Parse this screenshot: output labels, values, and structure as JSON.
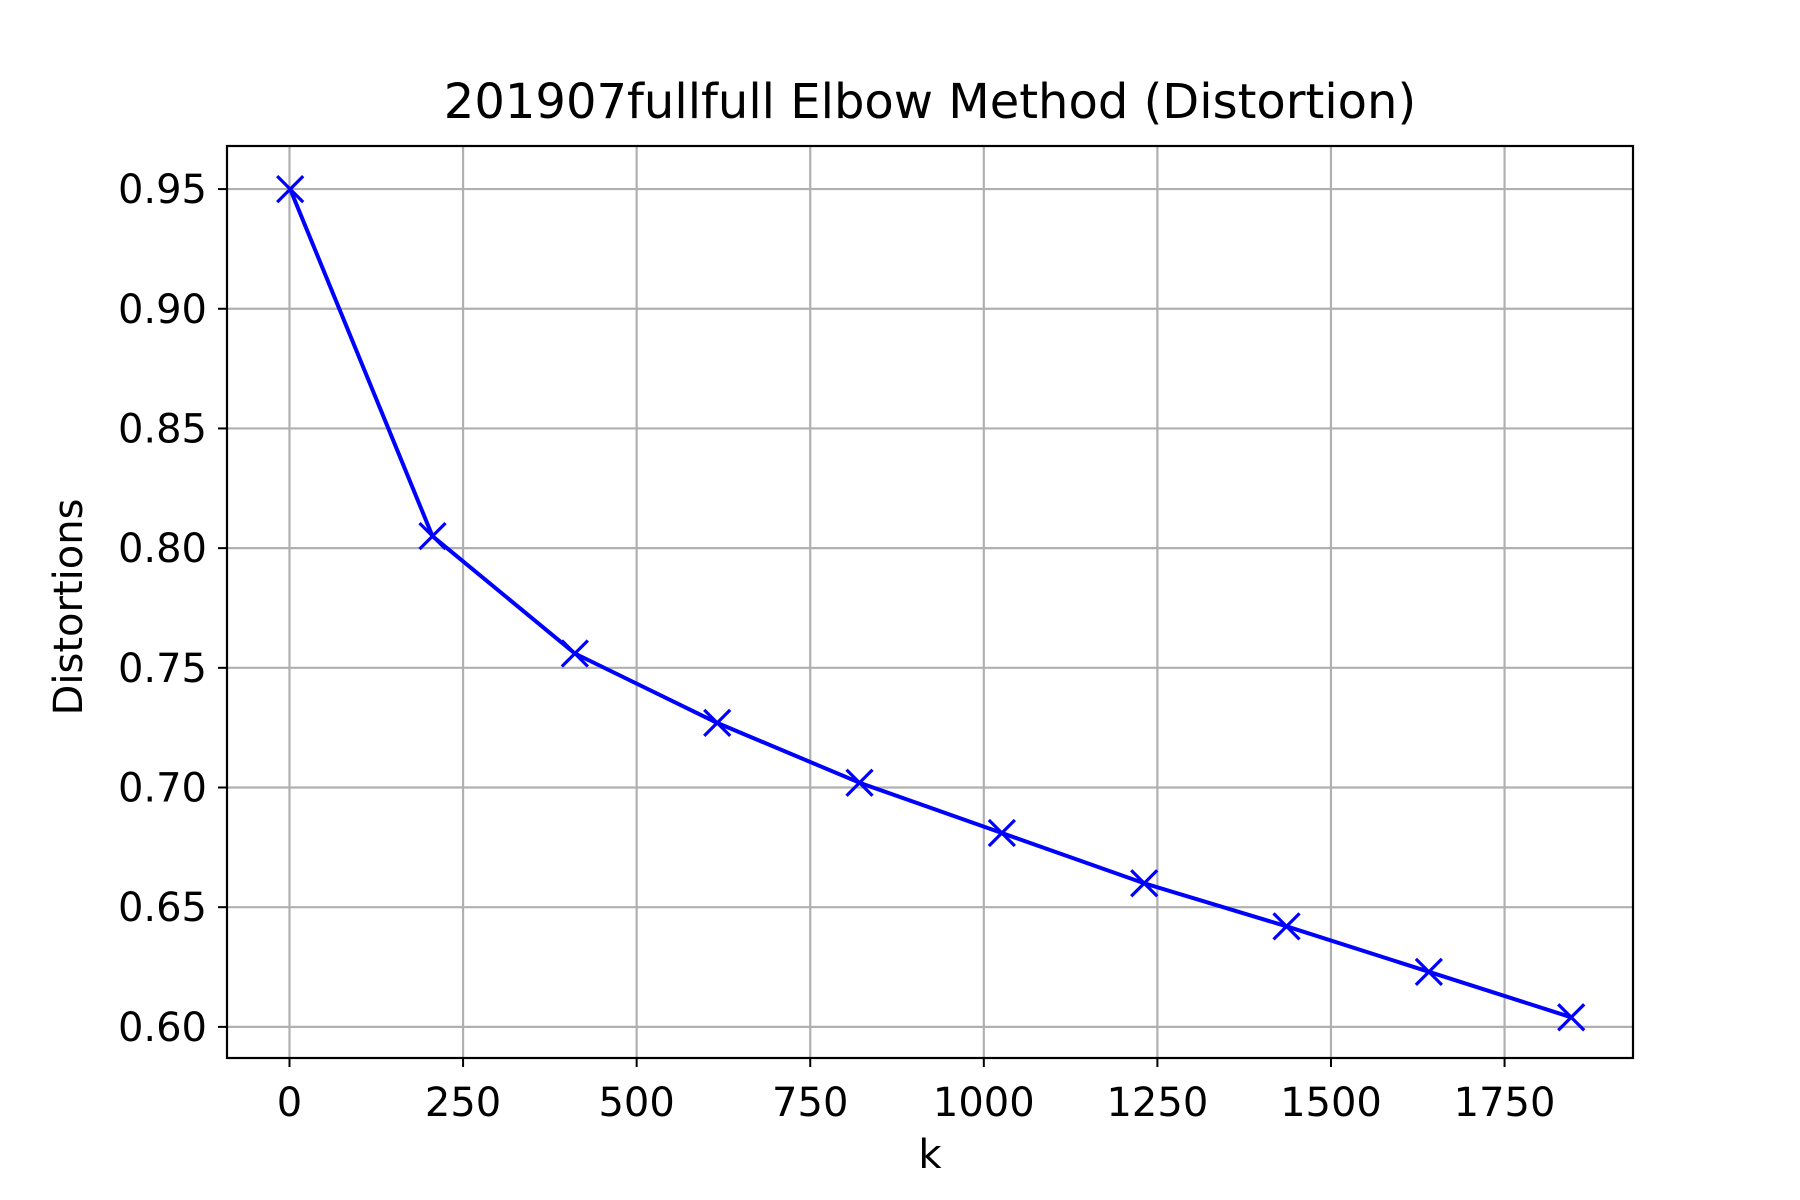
{
  "chart_data": {
    "type": "line",
    "title": "201907fullfull Elbow Method (Distortion)",
    "xlabel": "k",
    "ylabel": "Distortions",
    "xlim": [
      -90,
      1935
    ],
    "ylim": [
      0.587,
      0.968
    ],
    "xticks": [
      0,
      250,
      500,
      750,
      1000,
      1250,
      1500,
      1750
    ],
    "xtick_labels": [
      "0",
      "250",
      "500",
      "750",
      "1000",
      "1250",
      "1500",
      "1750"
    ],
    "yticks": [
      0.6,
      0.65,
      0.7,
      0.75,
      0.8,
      0.85,
      0.9,
      0.95
    ],
    "ytick_labels": [
      "0.60",
      "0.65",
      "0.70",
      "0.75",
      "0.80",
      "0.85",
      "0.90",
      "0.95"
    ],
    "grid": true,
    "series": [
      {
        "color": "#0000ff",
        "marker": "x",
        "x": [
          1,
          206,
          411,
          616,
          821,
          1026,
          1231,
          1436,
          1641,
          1846
        ],
        "y": [
          0.95,
          0.805,
          0.756,
          0.727,
          0.702,
          0.681,
          0.66,
          0.642,
          0.623,
          0.604
        ]
      }
    ]
  }
}
